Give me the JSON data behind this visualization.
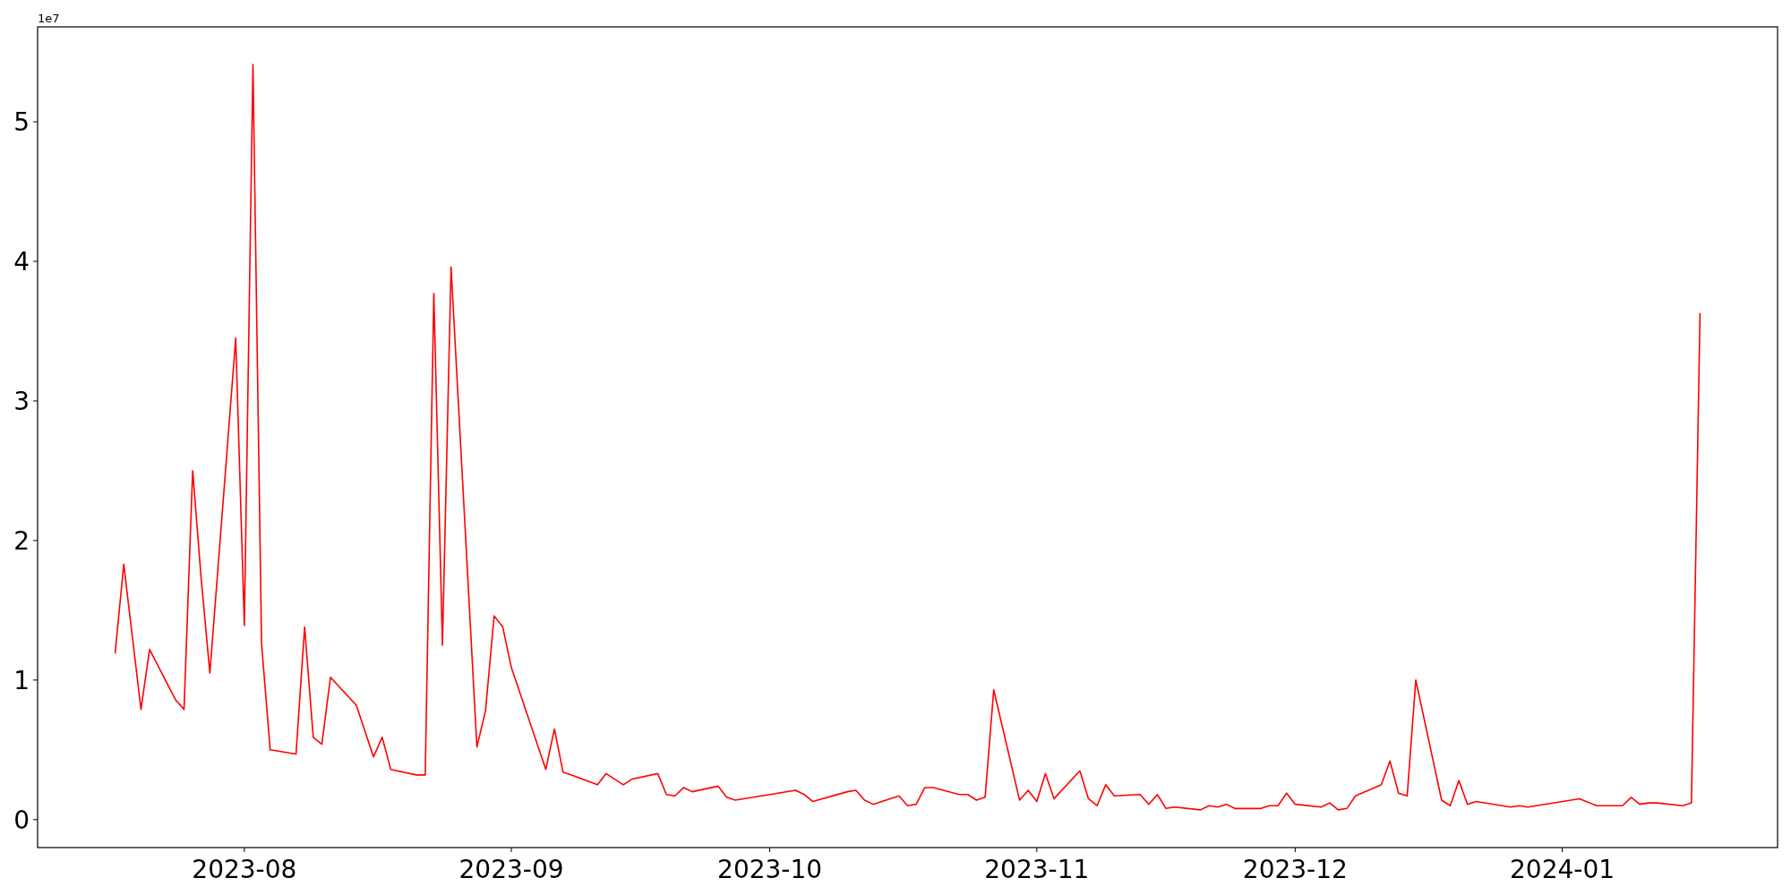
{
  "chart_data": {
    "type": "line",
    "annotations": [
      "1e7"
    ],
    "x": [
      "2023-07-17",
      "2023-07-18",
      "2023-07-20",
      "2023-07-21",
      "2023-07-24",
      "2023-07-25",
      "2023-07-26",
      "2023-07-27",
      "2023-07-28",
      "2023-07-31",
      "2023-08-01",
      "2023-08-02",
      "2023-08-03",
      "2023-08-04",
      "2023-08-07",
      "2023-08-08",
      "2023-08-09",
      "2023-08-10",
      "2023-08-11",
      "2023-08-14",
      "2023-08-16",
      "2023-08-17",
      "2023-08-18",
      "2023-08-21",
      "2023-08-22",
      "2023-08-23",
      "2023-08-24",
      "2023-08-25",
      "2023-08-28",
      "2023-08-29",
      "2023-08-30",
      "2023-08-31",
      "2023-09-01",
      "2023-09-05",
      "2023-09-06",
      "2023-09-07",
      "2023-09-08",
      "2023-09-11",
      "2023-09-12",
      "2023-09-13",
      "2023-09-14",
      "2023-09-15",
      "2023-09-18",
      "2023-09-19",
      "2023-09-20",
      "2023-09-21",
      "2023-09-22",
      "2023-09-25",
      "2023-09-26",
      "2023-09-27",
      "2023-10-04",
      "2023-10-05",
      "2023-10-06",
      "2023-10-10",
      "2023-10-11",
      "2023-10-12",
      "2023-10-13",
      "2023-10-16",
      "2023-10-17",
      "2023-10-18",
      "2023-10-19",
      "2023-10-20",
      "2023-10-23",
      "2023-10-24",
      "2023-10-25",
      "2023-10-26",
      "2023-10-27",
      "2023-10-30",
      "2023-10-31",
      "2023-11-01",
      "2023-11-02",
      "2023-11-03",
      "2023-11-06",
      "2023-11-07",
      "2023-11-08",
      "2023-11-09",
      "2023-11-10",
      "2023-11-13",
      "2023-11-14",
      "2023-11-15",
      "2023-11-16",
      "2023-11-17",
      "2023-11-20",
      "2023-11-21",
      "2023-11-22",
      "2023-11-23",
      "2023-11-24",
      "2023-11-27",
      "2023-11-28",
      "2023-11-29",
      "2023-11-30",
      "2023-12-01",
      "2023-12-04",
      "2023-12-05",
      "2023-12-06",
      "2023-12-07",
      "2023-12-08",
      "2023-12-11",
      "2023-12-12",
      "2023-12-13",
      "2023-12-14",
      "2023-12-15",
      "2023-12-18",
      "2023-12-19",
      "2023-12-20",
      "2023-12-21",
      "2023-12-22",
      "2023-12-26",
      "2023-12-27",
      "2023-12-28",
      "2024-01-03",
      "2024-01-05",
      "2024-01-08",
      "2024-01-09",
      "2024-01-10",
      "2024-01-11",
      "2024-01-12",
      "2024-01-15",
      "2024-01-16",
      "2024-01-17"
    ],
    "series": [
      {
        "color": "#ff0000",
        "values": [
          1.19,
          1.83,
          0.79,
          1.22,
          0.86,
          0.79,
          2.5,
          1.72,
          1.05,
          3.45,
          1.39,
          5.41,
          1.26,
          0.5,
          0.47,
          1.38,
          0.59,
          0.54,
          1.02,
          0.82,
          0.45,
          0.59,
          0.36,
          0.32,
          0.32,
          3.77,
          1.25,
          3.96,
          0.52,
          0.78,
          1.46,
          1.38,
          1.09,
          0.36,
          0.65,
          0.34,
          0.32,
          0.25,
          0.33,
          0.29,
          0.25,
          0.29,
          0.33,
          0.18,
          0.17,
          0.23,
          0.2,
          0.24,
          0.16,
          0.14,
          0.21,
          0.18,
          0.13,
          0.2,
          0.21,
          0.14,
          0.11,
          0.17,
          0.1,
          0.11,
          0.23,
          0.23,
          0.18,
          0.18,
          0.14,
          0.16,
          0.93,
          0.14,
          0.21,
          0.13,
          0.33,
          0.15,
          0.35,
          0.15,
          0.1,
          0.25,
          0.17,
          0.18,
          0.11,
          0.18,
          0.08,
          0.09,
          0.07,
          0.1,
          0.09,
          0.11,
          0.08,
          0.08,
          0.1,
          0.1,
          0.19,
          0.11,
          0.09,
          0.12,
          0.07,
          0.08,
          0.17,
          0.25,
          0.42,
          0.19,
          0.17,
          1.0,
          0.14,
          0.1,
          0.28,
          0.11,
          0.13,
          0.09,
          0.1,
          0.09,
          0.15,
          0.1,
          0.1,
          0.16,
          0.11,
          0.12,
          0.12,
          0.1,
          0.12,
          3.63
        ]
      }
    ],
    "xlim": [
      "2023-07-08",
      "2024-01-26"
    ],
    "xticks": [
      {
        "value": "2023-08-01",
        "label": "2023-08"
      },
      {
        "value": "2023-09-01",
        "label": "2023-09"
      },
      {
        "value": "2023-10-01",
        "label": "2023-10"
      },
      {
        "value": "2023-11-01",
        "label": "2023-11"
      },
      {
        "value": "2023-12-01",
        "label": "2023-12"
      },
      {
        "value": "2024-01-01",
        "label": "2024-01"
      }
    ],
    "ylim": [
      -0.2,
      5.68
    ],
    "yticks": [
      0,
      1,
      2,
      3,
      4,
      5
    ],
    "grid": false,
    "marker": "none",
    "line_style": "solid"
  }
}
